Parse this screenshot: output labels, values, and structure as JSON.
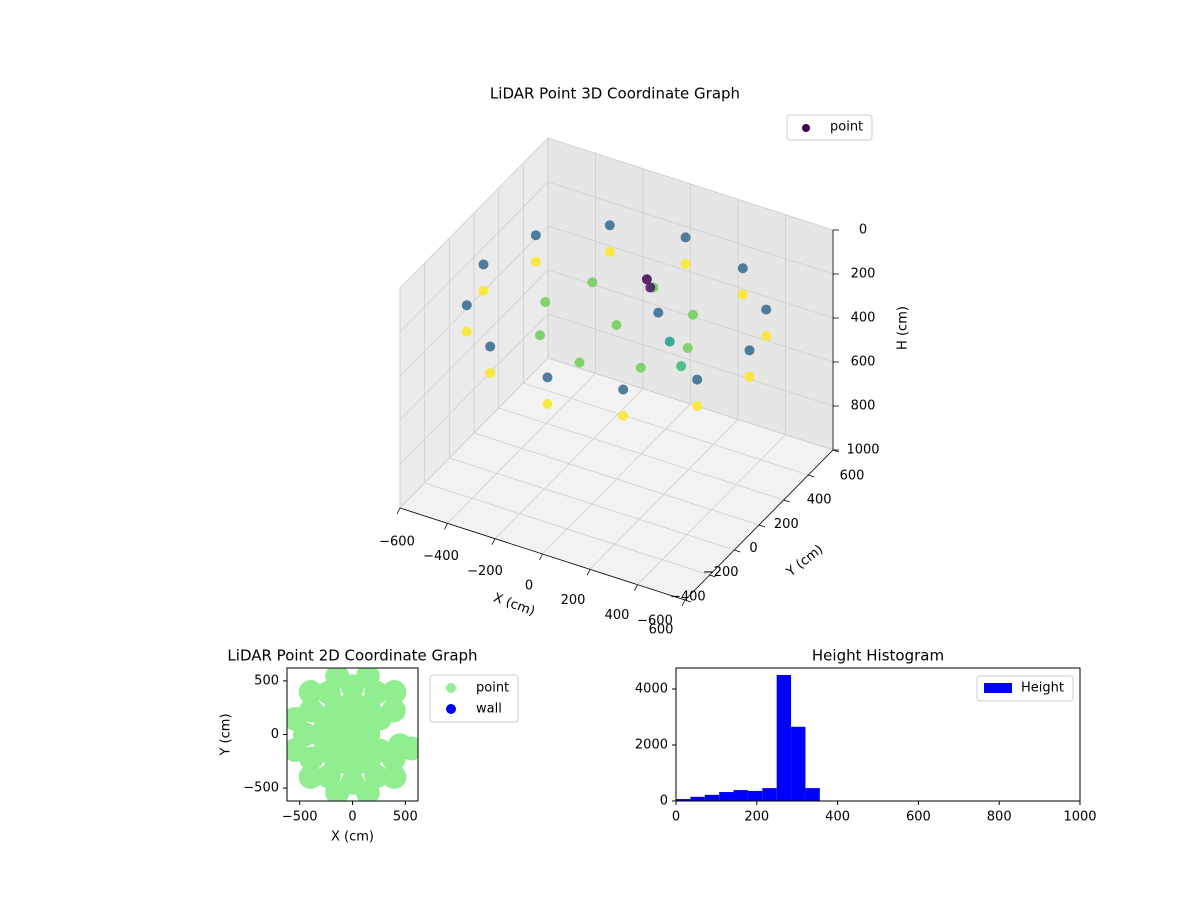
{
  "chart_data": [
    {
      "type": "scatter3d",
      "title": "LiDAR Point 3D Coordinate Graph",
      "xlabel": "X (cm)",
      "ylabel": "Y (cm)",
      "zlabel": "H (cm)",
      "xlim": [
        -600,
        600
      ],
      "ylim": [
        -600,
        600
      ],
      "zlim": [
        0,
        1000
      ],
      "z_inverted": true,
      "xticks": [
        {
          "value": -600,
          "label": "−600"
        },
        {
          "value": -400,
          "label": "−400"
        },
        {
          "value": -200,
          "label": "−200"
        },
        0,
        200,
        400,
        600
      ],
      "yticks": [
        {
          "value": -600,
          "label": "−600"
        },
        {
          "value": -400,
          "label": "−400"
        },
        {
          "value": -200,
          "label": "−200"
        },
        0,
        200,
        400,
        600
      ],
      "zticks": [
        0,
        200,
        400,
        600,
        800,
        1000
      ],
      "colormap": "viridis",
      "grid": true,
      "legend": "upper right",
      "series": [
        {
          "name": "point",
          "color": "#440154",
          "x": [
            560,
            485,
            280,
            0,
            -280,
            -485,
            -560,
            -485,
            -280,
            0,
            280,
            485,
            560,
            485,
            280,
            0,
            -280,
            -485,
            -560,
            -485,
            -280,
            0,
            280,
            485,
            300,
            212,
            0,
            -212,
            -300,
            -212,
            0,
            212,
            0,
            50,
            80,
            150,
            250,
            350
          ],
          "y": [
            0,
            280,
            485,
            560,
            485,
            280,
            0,
            -280,
            -485,
            -560,
            -485,
            -280,
            0,
            280,
            485,
            560,
            485,
            280,
            0,
            -280,
            -485,
            -560,
            -485,
            -280,
            0,
            212,
            300,
            212,
            0,
            -212,
            -300,
            -212,
            0,
            150,
            120,
            50,
            -50,
            -150
          ],
          "z": [
            220,
            220,
            220,
            220,
            220,
            220,
            220,
            220,
            220,
            220,
            220,
            220,
            340,
            340,
            340,
            340,
            340,
            340,
            340,
            340,
            340,
            340,
            340,
            340,
            300,
            300,
            300,
            300,
            300,
            300,
            300,
            300,
            300,
            160,
            170,
            220,
            260,
            280
          ]
        }
      ]
    },
    {
      "type": "scatter",
      "title": "LiDAR Point 2D Coordinate Graph",
      "xlabel": "X (cm)",
      "ylabel": "Y (cm)",
      "xlim": [
        -620,
        620
      ],
      "ylim": [
        -620,
        620
      ],
      "xticks": [
        {
          "value": -500,
          "label": "−500"
        },
        0,
        500
      ],
      "yticks": [
        {
          "value": -500,
          "label": "−500"
        },
        0,
        500
      ],
      "legend": "outside upper right",
      "series": [
        {
          "name": "point",
          "color": "#90ee90",
          "x": [
            0,
            150,
            75,
            -75,
            -150,
            -75,
            75,
            260,
            150,
            0,
            -150,
            -260,
            -300,
            -260,
            -150,
            0,
            150,
            260,
            390,
            225,
            0,
            -225,
            -390,
            -450,
            -390,
            -225,
            0,
            225,
            390,
            396,
            145,
            -145,
            -396,
            -541,
            -541,
            -396,
            -145,
            145,
            396,
            450,
            560
          ],
          "y": [
            0,
            0,
            130,
            130,
            0,
            -130,
            -130,
            150,
            260,
            300,
            260,
            150,
            0,
            -150,
            -260,
            -300,
            -260,
            -150,
            225,
            390,
            450,
            390,
            225,
            0,
            -225,
            -390,
            -450,
            -390,
            -225,
            396,
            541,
            541,
            396,
            145,
            -145,
            -396,
            -541,
            -541,
            -396,
            -100,
            -130
          ]
        },
        {
          "name": "wall",
          "color": "#0000ff",
          "x": [],
          "y": []
        }
      ]
    },
    {
      "type": "histogram",
      "title": "Height Histogram",
      "name": "Height",
      "color": "#0000ff",
      "bins": [
        0,
        35.6,
        71.2,
        106.8,
        142.4,
        178,
        213.6,
        249.2,
        284.8,
        320.4,
        356
      ],
      "values": [
        70,
        150,
        220,
        320,
        390,
        360,
        460,
        4500,
        2650,
        460
      ],
      "xlim": [
        0,
        1000
      ],
      "ylim": [
        0,
        4750
      ],
      "xticks": [
        0,
        200,
        400,
        600,
        800,
        1000
      ],
      "yticks": [
        0,
        2000,
        4000
      ],
      "legend": "upper right"
    }
  ]
}
